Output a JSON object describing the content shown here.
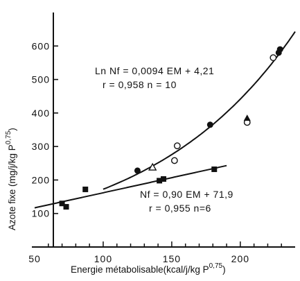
{
  "chart_data": {
    "type": "scatter",
    "title": "",
    "xlabel": "Energie métabolisable(kcal/j/kg P",
    "xlabel_exponent": "0,75",
    "xlabel_close": ")",
    "ylabel": "Azote fixe  (mg/j/kg P",
    "ylabel_exponent": "0,75",
    "ylabel_close": ")",
    "xlim": [
      50,
      240
    ],
    "ylim": [
      0,
      700
    ],
    "xticks": [
      50,
      100,
      150,
      200
    ],
    "yticks": [
      100,
      200,
      300,
      400,
      500,
      600
    ],
    "xtick_labels": [
      "50",
      "100",
      "150",
      "200"
    ],
    "ytick_labels": [
      "100",
      "200",
      "300",
      "400",
      "500",
      "600"
    ],
    "grid": false,
    "legend": "none",
    "series": [
      {
        "marker": "square-filled",
        "points": [
          [
            70,
            130
          ],
          [
            73,
            120
          ],
          [
            87,
            172
          ],
          [
            141,
            198
          ],
          [
            144,
            203
          ],
          [
            181,
            232
          ]
        ]
      },
      {
        "marker": "circle-filled",
        "points": [
          [
            125,
            228
          ],
          [
            178,
            365
          ],
          [
            228,
            580
          ],
          [
            229,
            590
          ]
        ]
      },
      {
        "marker": "circle-open",
        "points": [
          [
            152,
            258
          ],
          [
            154,
            302
          ],
          [
            205,
            372
          ],
          [
            224,
            565
          ]
        ]
      },
      {
        "marker": "triangle-open",
        "points": [
          [
            136,
            238
          ]
        ]
      },
      {
        "marker": "triangle-filled",
        "points": [
          [
            205,
            385
          ]
        ]
      }
    ],
    "fits": [
      {
        "kind": "linear",
        "slope": 0.9,
        "intercept": 71.9,
        "x_range": [
          50,
          190
        ]
      },
      {
        "kind": "exponential",
        "a": 0.0094,
        "b": 4.21,
        "x_range": [
          100,
          240
        ]
      }
    ],
    "annotations": [
      {
        "id": "exp",
        "lines": [
          "Ln Nf = 0,0094 EM + 4,21",
          "r = 0,958   n = 10"
        ]
      },
      {
        "id": "lin",
        "lines": [
          "Nf = 0,90 EM + 71,9",
          "r = 0,955   n=6"
        ]
      }
    ]
  }
}
